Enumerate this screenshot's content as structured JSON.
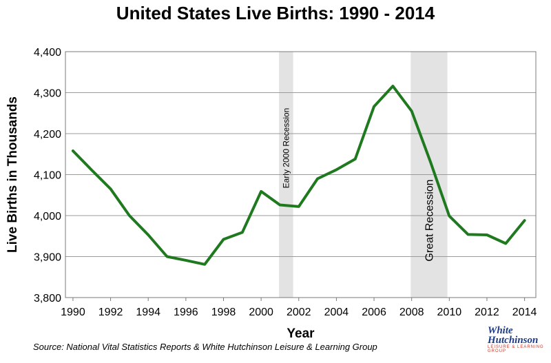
{
  "chart_data": {
    "type": "line",
    "title": "United States Live Births: 1990 - 2014",
    "xlabel": "Year",
    "ylabel": "Live Births in Thousands",
    "x": [
      1990,
      1991,
      1992,
      1993,
      1994,
      1995,
      1996,
      1997,
      1998,
      1999,
      2000,
      2001,
      2002,
      2003,
      2004,
      2005,
      2006,
      2007,
      2008,
      2009,
      2010,
      2011,
      2012,
      2013,
      2014
    ],
    "series": [
      {
        "values": [
          4158,
          4111,
          4065,
          4000,
          3953,
          3900,
          3891,
          3881,
          3942,
          3959,
          4059,
          4026,
          4022,
          4090,
          4112,
          4138,
          4266,
          4316,
          4255,
          4131,
          3999,
          3954,
          3953,
          3932,
          3988
        ],
        "color": "#1f7a1f"
      }
    ],
    "xlim": [
      1989.6,
      2014.6
    ],
    "ylim": [
      3800,
      4400
    ],
    "x_ticks": [
      "1990",
      "1992",
      "1994",
      "1996",
      "1998",
      "2000",
      "2002",
      "2004",
      "2006",
      "2008",
      "2010",
      "2012",
      "2014"
    ],
    "x_tick_values": [
      1990,
      1992,
      1994,
      1996,
      1998,
      2000,
      2002,
      2004,
      2006,
      2008,
      2010,
      2012,
      2014
    ],
    "y_ticks": [
      "3,800",
      "3,900",
      "4,000",
      "4,100",
      "4,200",
      "4,300",
      "4,400"
    ],
    "y_tick_values": [
      3800,
      3900,
      4000,
      4100,
      4200,
      4300,
      4400
    ],
    "grid": true,
    "legend": "none",
    "bands": [
      {
        "label": "Early 2000 Recession",
        "from": 2000.95,
        "to": 2001.7,
        "color": "#e3e3e3"
      },
      {
        "label": "Great Recession",
        "from": 2007.95,
        "to": 2009.9,
        "color": "#e3e3e3"
      }
    ]
  },
  "source": "Source: National Vital Statistics Reports & White Hutchinson Leisure & Learning Group",
  "logo": {
    "line1": "White",
    "line2": "Hutchinson",
    "line3": "LEISURE & LEARNING GROUP"
  }
}
